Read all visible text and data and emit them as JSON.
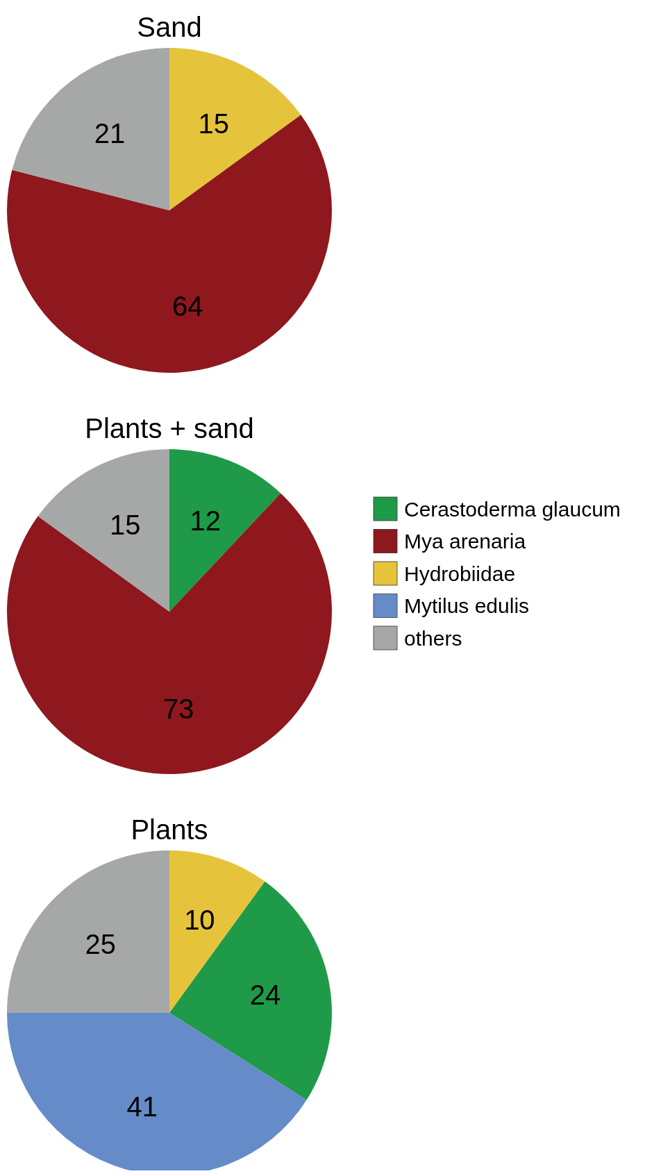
{
  "chart_data": [
    {
      "type": "pie",
      "title": "Sand",
      "categories": [
        null,
        null,
        null
      ],
      "values": [
        15,
        64,
        21
      ],
      "colors": [
        "#e5c43c",
        "#8e181d",
        "#a6a8a8"
      ],
      "data_labels": true,
      "legend": false
    },
    {
      "type": "pie",
      "title": "Plants + sand",
      "categories": [
        "Cerastoderma glaucum",
        "Mya arenaria",
        "Hydrobiidae",
        "Mytilus edulis",
        "others"
      ],
      "values": [
        12,
        73,
        0,
        0,
        15
      ],
      "colors": [
        "#1e9a48",
        "#8e181d",
        "#e5c43c",
        "#658cc9",
        "#a6a8a8"
      ],
      "data_labels": true,
      "legend": "right"
    },
    {
      "type": "pie",
      "title": "Plants",
      "categories": [
        null,
        null,
        null,
        null
      ],
      "values": [
        10,
        24,
        41,
        25
      ],
      "colors": [
        "#e5c43c",
        "#1e9a48",
        "#658cc9",
        "#a6a8a8"
      ],
      "data_labels": true,
      "legend": false
    }
  ]
}
